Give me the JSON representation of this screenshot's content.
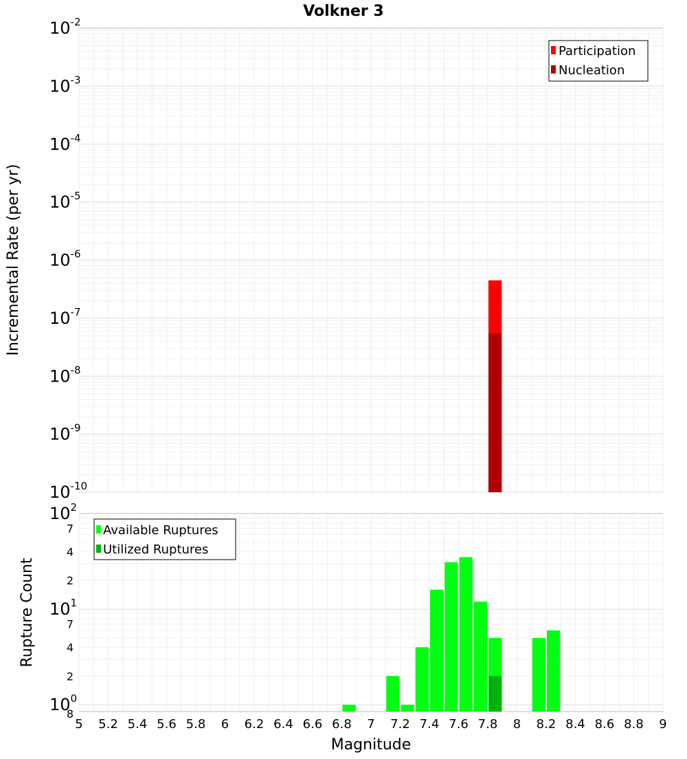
{
  "chart_data": [
    {
      "type": "bar",
      "title": "Volkner 3",
      "xlabel": "",
      "ylabel": "Incremental Rate (per yr)",
      "y_scale": "log",
      "ylim": [
        1e-10,
        0.01
      ],
      "xlim": [
        5,
        9
      ],
      "grid": true,
      "legend_position": "top-right",
      "y_ticks": [
        {
          "base": "10",
          "exp": "-10",
          "value": 1e-10
        },
        {
          "base": "10",
          "exp": "-9",
          "value": 1e-09
        },
        {
          "base": "10",
          "exp": "-8",
          "value": 1e-08
        },
        {
          "base": "10",
          "exp": "-7",
          "value": 1e-07
        },
        {
          "base": "10",
          "exp": "-6",
          "value": 1e-06
        },
        {
          "base": "10",
          "exp": "-5",
          "value": 1e-05
        },
        {
          "base": "10",
          "exp": "-4",
          "value": 0.0001
        },
        {
          "base": "10",
          "exp": "-3",
          "value": 0.001
        },
        {
          "base": "10",
          "exp": "-2",
          "value": 0.01
        }
      ],
      "series": [
        {
          "name": "Participation",
          "color": "#ff0000",
          "x": [
            7.85
          ],
          "values": [
            4.5e-07
          ]
        },
        {
          "name": "Nucleation",
          "color": "#b00000",
          "x": [
            7.85
          ],
          "values": [
            5.5e-08
          ]
        }
      ]
    },
    {
      "type": "bar",
      "xlabel": "Magnitude",
      "ylabel": "Rupture Count",
      "y_scale": "log",
      "ylim": [
        0.85,
        100
      ],
      "xlim": [
        5,
        9
      ],
      "grid": true,
      "legend_position": "top-left",
      "x_ticks": [
        "5",
        "5.2",
        "5.4",
        "5.6",
        "5.8",
        "6",
        "6.2",
        "6.4",
        "6.6",
        "6.8",
        "7",
        "7.2",
        "7.4",
        "7.6",
        "7.8",
        "8",
        "8.2",
        "8.4",
        "8.6",
        "8.8",
        "9"
      ],
      "y_major_ticks": [
        {
          "base": "10",
          "exp": "0",
          "value": 1
        },
        {
          "base": "10",
          "exp": "1",
          "value": 10
        },
        {
          "base": "10",
          "exp": "2",
          "value": 100
        }
      ],
      "y_minor_ticks": [
        {
          "label": "8",
          "value": 0.8
        },
        {
          "label": "2",
          "value": 2
        },
        {
          "label": "4",
          "value": 4
        },
        {
          "label": "7",
          "value": 7
        },
        {
          "label": "2",
          "value": 20
        },
        {
          "label": "4",
          "value": 40
        },
        {
          "label": "7",
          "value": 70
        }
      ],
      "series": [
        {
          "name": "Available Ruptures",
          "color": "#00ff11",
          "x": [
            6.85,
            7.15,
            7.25,
            7.35,
            7.45,
            7.55,
            7.65,
            7.75,
            7.85,
            8.15,
            8.25
          ],
          "values": [
            1,
            2,
            1,
            4,
            16,
            31,
            35,
            12,
            5,
            5,
            6
          ]
        },
        {
          "name": "Utilized Ruptures",
          "color": "#00b30c",
          "x": [
            7.85
          ],
          "values": [
            2
          ]
        }
      ]
    }
  ]
}
